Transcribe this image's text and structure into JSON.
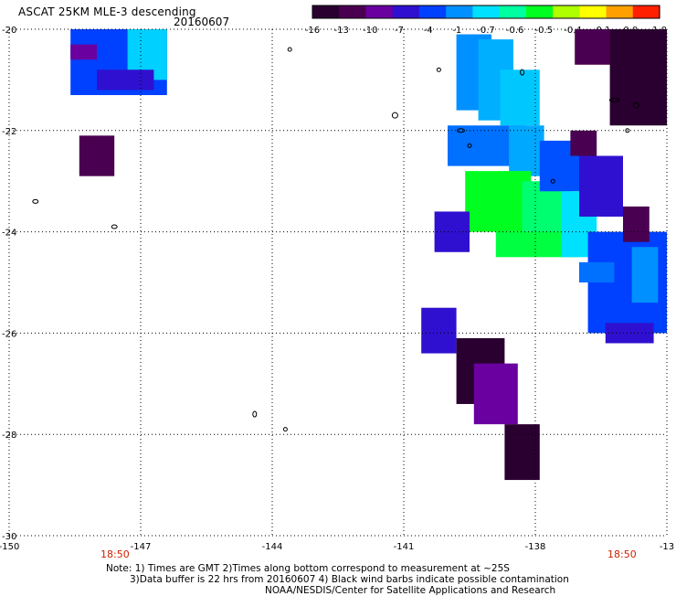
{
  "header": {
    "title": "ASCAT 25KM MLE-3 descending",
    "date": "20160607"
  },
  "colorbar": {
    "labels": [
      "-16",
      "-13",
      "-10",
      "-7",
      "-4",
      "-1",
      "-0.7",
      "-0.6",
      "-0.5",
      "-0.4",
      "-0.1",
      "0.0",
      "1.0"
    ],
    "colors": [
      "#2a0030",
      "#4a0050",
      "#6a00a0",
      "#3010d0",
      "#0040ff",
      "#0090ff",
      "#00e0ff",
      "#00ffa0",
      "#00ff20",
      "#b0ff00",
      "#ffff00",
      "#ffa000",
      "#ff2000"
    ]
  },
  "axes": {
    "y_labels": [
      "-20",
      "-22",
      "-24",
      "-26",
      "-28",
      "-30"
    ],
    "x_labels": [
      "-150",
      "-147",
      "-144",
      "-141",
      "-138",
      "-13"
    ],
    "x_time_labels": [
      "18:50",
      "18:50"
    ]
  },
  "map_data": {
    "lon_range": [
      -150,
      -135
    ],
    "lat_range": [
      -30,
      -20
    ],
    "swaths": [
      {
        "lon": [
          -148.6,
          -146.4
        ],
        "lat": [
          -21.3,
          -20.0
        ],
        "color": "#0040ff"
      },
      {
        "lon": [
          -147.3,
          -146.4
        ],
        "lat": [
          -21.0,
          -20.0
        ],
        "color": "#00d0ff"
      },
      {
        "lon": [
          -147.7,
          -146.8
        ],
        "lat": [
          -21.2,
          -20.8
        ],
        "color": "#0070ff"
      },
      {
        "lon": [
          -148.0,
          -146.7
        ],
        "lat": [
          -21.2,
          -20.8
        ],
        "color": "#3010d0"
      },
      {
        "lon": [
          -148.6,
          -148.0
        ],
        "lat": [
          -20.6,
          -20.3
        ],
        "color": "#6a00a0"
      },
      {
        "lon": [
          -148.4,
          -147.6
        ],
        "lat": [
          -22.9,
          -22.1
        ],
        "color": "#4a0050"
      },
      {
        "lon": [
          -139.8,
          -139.0
        ],
        "lat": [
          -21.6,
          -20.1
        ],
        "color": "#0090ff"
      },
      {
        "lon": [
          -139.3,
          -138.5
        ],
        "lat": [
          -21.8,
          -20.2
        ],
        "color": "#00b0ff"
      },
      {
        "lon": [
          -138.8,
          -137.9
        ],
        "lat": [
          -21.9,
          -20.8
        ],
        "color": "#00c8ff"
      },
      {
        "lon": [
          -140.0,
          -138.2
        ],
        "lat": [
          -22.7,
          -21.9
        ],
        "color": "#0070ff"
      },
      {
        "lon": [
          -138.6,
          -137.8
        ],
        "lat": [
          -22.9,
          -21.9
        ],
        "color": "#00a8ff"
      },
      {
        "lon": [
          -139.6,
          -138.1
        ],
        "lat": [
          -24.0,
          -22.8
        ],
        "color": "#00ff20"
      },
      {
        "lon": [
          -138.3,
          -137.2
        ],
        "lat": [
          -24.2,
          -23.0
        ],
        "color": "#00ff70"
      },
      {
        "lon": [
          -138.9,
          -137.0
        ],
        "lat": [
          -24.5,
          -24.0
        ],
        "color": "#00ff40"
      },
      {
        "lon": [
          -137.9,
          -137.0
        ],
        "lat": [
          -23.2,
          -22.2
        ],
        "color": "#0050ff"
      },
      {
        "lon": [
          -137.4,
          -136.6
        ],
        "lat": [
          -24.5,
          -23.2
        ],
        "color": "#00e0ff"
      },
      {
        "lon": [
          -137.2,
          -136.6
        ],
        "lat": [
          -22.5,
          -22.0
        ],
        "color": "#4a0050"
      },
      {
        "lon": [
          -137.0,
          -136.0
        ],
        "lat": [
          -23.7,
          -22.5
        ],
        "color": "#3010d0"
      },
      {
        "lon": [
          -136.8,
          -135.0
        ],
        "lat": [
          -26.0,
          -24.0
        ],
        "color": "#0040ff"
      },
      {
        "lon": [
          -136.0,
          -135.4
        ],
        "lat": [
          -24.2,
          -23.5
        ],
        "color": "#4a0050"
      },
      {
        "lon": [
          -135.8,
          -135.2
        ],
        "lat": [
          -25.4,
          -24.3
        ],
        "color": "#0090ff"
      },
      {
        "lon": [
          -137.0,
          -136.2
        ],
        "lat": [
          -25.0,
          -24.6
        ],
        "color": "#0070ff"
      },
      {
        "lon": [
          -136.4,
          -135.3
        ],
        "lat": [
          -26.2,
          -25.8
        ],
        "color": "#3010d0"
      },
      {
        "lon": [
          -137.1,
          -136.0
        ],
        "lat": [
          -20.7,
          -20.0
        ],
        "color": "#4a0050"
      },
      {
        "lon": [
          -136.3,
          -135.0
        ],
        "lat": [
          -21.9,
          -20.0
        ],
        "color": "#2a0030"
      },
      {
        "lon": [
          -140.3,
          -139.5
        ],
        "lat": [
          -24.4,
          -23.6
        ],
        "color": "#3010d0"
      },
      {
        "lon": [
          -140.6,
          -139.8
        ],
        "lat": [
          -26.4,
          -25.5
        ],
        "color": "#3010d0"
      },
      {
        "lon": [
          -139.8,
          -138.7
        ],
        "lat": [
          -27.4,
          -26.1
        ],
        "color": "#2a0030"
      },
      {
        "lon": [
          -139.4,
          -138.4
        ],
        "lat": [
          -27.8,
          -26.6
        ],
        "color": "#6a00a0"
      },
      {
        "lon": [
          -138.7,
          -137.9
        ],
        "lat": [
          -28.9,
          -27.8
        ],
        "color": "#2a0030"
      }
    ]
  },
  "footer": {
    "note_line1": "Note: 1) Times are GMT 2)Times along bottom correspond to measurement at ~25S",
    "note_line2": "3)Data buffer is 22 hrs from 20160607 4) Black wind barbs indicate possible contamination",
    "credit": "NOAA/NESDIS/Center for Satellite Applications and Research"
  }
}
